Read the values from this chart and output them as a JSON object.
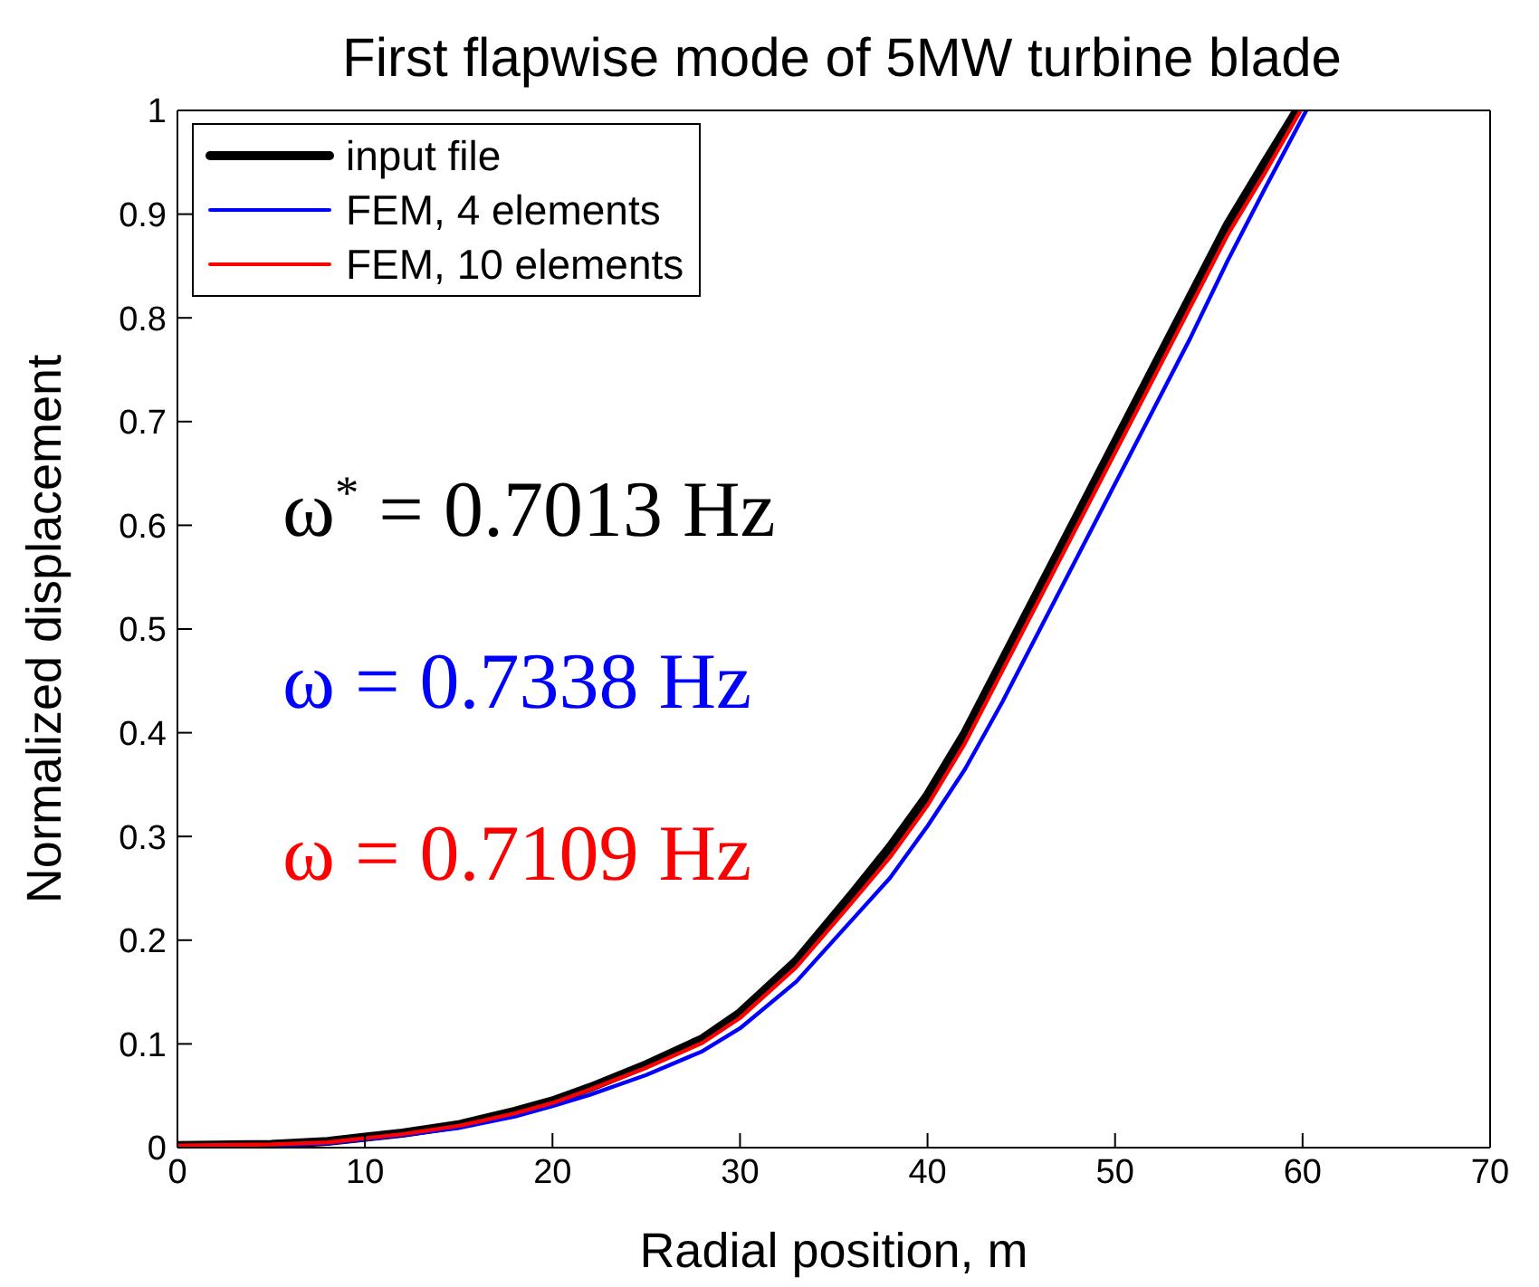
{
  "chart_data": {
    "type": "line",
    "title": "First flapwise mode of 5MW turbine blade",
    "xlabel": "Radial position, m",
    "ylabel": "Normalized displacement",
    "xlim": [
      0,
      70
    ],
    "xticks": [
      0,
      10,
      20,
      30,
      40,
      50,
      60,
      70
    ],
    "ylim": [
      0,
      1
    ],
    "yticks": [
      0,
      0.1,
      0.2,
      0.3,
      0.4,
      0.5,
      0.6,
      0.7,
      0.8,
      0.9,
      1
    ],
    "legend": "top left",
    "grid": false,
    "annotations": [
      "ω$^{*}$ = 0.7013 Hz",
      "ω = 0.7338 Hz",
      "ω = 0.7109 Hz"
    ],
    "series": [
      {
        "name": "input file",
        "color": "#000000",
        "x": [
          0,
          5,
          8,
          10,
          12,
          15,
          18,
          20,
          22,
          25,
          28,
          30,
          33,
          36,
          38,
          40,
          42,
          44,
          46,
          48,
          50,
          52,
          54,
          56,
          58,
          59.7
        ],
        "values": [
          0.002,
          0.003,
          0.006,
          0.01,
          0.014,
          0.022,
          0.035,
          0.045,
          0.058,
          0.08,
          0.105,
          0.13,
          0.18,
          0.245,
          0.29,
          0.34,
          0.4,
          0.47,
          0.54,
          0.61,
          0.68,
          0.75,
          0.82,
          0.89,
          0.95,
          1
        ]
      },
      {
        "name": "FEM, 4 elements",
        "color": "#0000ff",
        "x": [
          0,
          5,
          8,
          10,
          12,
          15,
          18,
          20,
          22,
          25,
          28,
          30,
          33,
          36,
          38,
          40,
          42,
          44,
          46,
          48,
          50,
          52,
          54,
          56,
          58,
          60.2
        ],
        "values": [
          0.001,
          0.002,
          0.004,
          0.008,
          0.012,
          0.019,
          0.03,
          0.04,
          0.051,
          0.07,
          0.093,
          0.115,
          0.16,
          0.22,
          0.26,
          0.31,
          0.365,
          0.43,
          0.5,
          0.57,
          0.64,
          0.71,
          0.78,
          0.855,
          0.925,
          1
        ]
      },
      {
        "name": "FEM, 10 elements",
        "color": "#ff0000",
        "x": [
          0,
          5,
          8,
          10,
          12,
          15,
          18,
          20,
          22,
          25,
          28,
          30,
          33,
          36,
          38,
          40,
          42,
          44,
          46,
          48,
          50,
          52,
          54,
          56,
          58,
          59.9
        ],
        "values": [
          0.002,
          0.003,
          0.005,
          0.009,
          0.013,
          0.021,
          0.033,
          0.043,
          0.056,
          0.077,
          0.101,
          0.125,
          0.174,
          0.237,
          0.28,
          0.33,
          0.39,
          0.46,
          0.53,
          0.6,
          0.67,
          0.74,
          0.81,
          0.88,
          0.94,
          1
        ]
      }
    ]
  }
}
